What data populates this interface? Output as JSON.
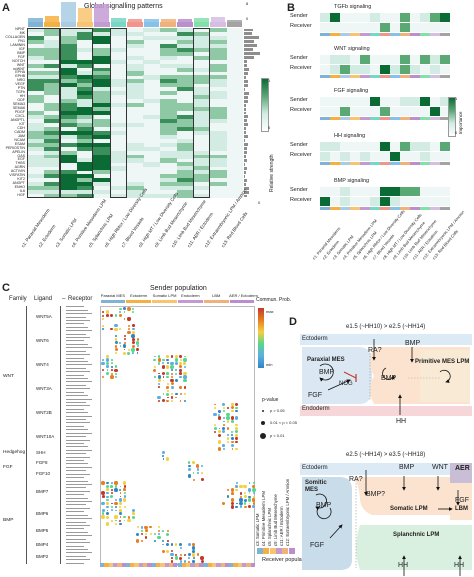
{
  "panelA": {
    "letter": "A",
    "title": "Global signalling patterns",
    "pathways": [
      "NPNT",
      "MK",
      "COLLAGEN",
      "FN1",
      "LAMININ",
      "IGF",
      "BMP",
      "FGF",
      "NOTCH",
      "WNT",
      "ncWNT",
      "EPHA",
      "EPHB",
      "NRG",
      "VEGF",
      "PTN",
      "TGFb",
      "HH",
      "GDF",
      "SEMA3",
      "SEMA6",
      "PDGF",
      "CXCL",
      "ANGPTL",
      "KIT",
      "CDH",
      "CADM",
      "JAM",
      "NCAM",
      "ESAM",
      "PERIOSTIN",
      "APELIN",
      "GAS",
      "EGF",
      "THBS",
      "AGRN",
      "ACTIVIN",
      "VISFATIN",
      "KIT2",
      "ANGPT",
      "ENHO",
      "IL6",
      "HGF"
    ],
    "columns": [
      "c1: Paraxial Mesoderm",
      "c2: Ectoderm",
      "c3: Somatic LPM",
      "c4: Primitive Mesoderm LPM",
      "c5: Splanchnic LPM",
      "c6: High Rbfox / Low Diversity Cells",
      "c7: Blood Vessels",
      "c8: High MT / Low Diversity Cells",
      "c9: Limb Bud Mesenchyme",
      "c10: Limb Bud Mesenchyme",
      "c11: AER / Ectoderm",
      "c12: Extraembryonic LPM / Amnion",
      "c13: Red Blood Cells"
    ],
    "legend_title": "Relative strength",
    "legend_max": "1",
    "legend_min": "0",
    "top_bar_max": "8",
    "top_bar_zero": "0",
    "right_bar_max": "0",
    "colors": {
      "dark": "#0b6b35",
      "mid": "#5aa874",
      "light": "#d2ece4",
      "bg": "#eef7f5"
    }
  },
  "panelB": {
    "letter": "B",
    "blocks": [
      {
        "title": "TGFb signaling"
      },
      {
        "title": "WNT signaling"
      },
      {
        "title": "FGF signaling"
      },
      {
        "title": "HH signaling"
      },
      {
        "title": "BMP signaling"
      }
    ],
    "sender": "Sender",
    "receiver": "Receiver",
    "legend_title": "Importance",
    "legend_max": "1",
    "legend_min": "0",
    "columns": [
      "c1: Paraxial Mesoderm",
      "c2: Ectoderm",
      "c3: Somatic LPM",
      "c4: Primitive Mesoderm LPM",
      "c5: Splanchnic LPM",
      "c6: High Rbfox / Low Diversity Cells",
      "c7: Blood Vessels",
      "c8: High MT / Low Diversity Cells",
      "c9: Limb Bud Mesenchyme",
      "c10: Limb Bud Mesenchyme",
      "c11: AER / Ectoderm",
      "c12: Extraembryonic LPM / Amnion",
      "c13: Red Blood Cells"
    ]
  },
  "panelC": {
    "letter": "C",
    "header_family": "Family",
    "header_ligand": "Ligand",
    "header_receptor": "Receptor",
    "sender_title": "Sender population",
    "sender_groups": [
      "Paraxial MES",
      "Ectoderm",
      "Somatic LPM",
      "Endoderm",
      "LBM",
      "AER / Ectoderm"
    ],
    "families": [
      "WNT",
      "Hedgehog",
      "FGF",
      "BMP"
    ],
    "ligands": [
      "WNT5A",
      "WNT6",
      "WNT4",
      "WNT3A",
      "WNT2B",
      "WNT10A",
      "SHH",
      "FGF8",
      "FGF10",
      "BMP7",
      "BMP6",
      "BMP5",
      "BMP4",
      "BMP2"
    ],
    "legend_title": "Commun. Prob.",
    "legend_max": "max",
    "legend_min": "min",
    "pvalue_title": "p-value",
    "pvalue_items": [
      "p > 0.05",
      "0.01 < p < 0.05",
      "p < 0.01"
    ],
    "receiver_legend": [
      "c3: Somatic LPM",
      "c4: Primitive Mesoderm LPM",
      "c5: Splanchnic LPM",
      "c9: Limb Bud Mesenchyme",
      "c11: AER / Ectoderm",
      "c12: Extraembryonic LPM / Amnion"
    ],
    "receiver_title": "Receiver population"
  },
  "panelD": {
    "letter": "D",
    "top": {
      "title": "e1.5 (~HH10) > e2.5 (~HH14)",
      "ectoderm": "Ectoderm",
      "endoderm": "Endoderm",
      "paraxial": "Paraxial MES",
      "primitive": "Primitive MES LPM",
      "bmp_top": "BMP",
      "ra": "RA?",
      "bmp_left": "BMP",
      "bmp_mid": "BMP",
      "nog": "NOG",
      "fgf": "FGF",
      "hh": "HH"
    },
    "bottom": {
      "title": "e2.5 (~HH14) > e3.5 (~HH18)",
      "ectoderm": "Ectoderm",
      "aer": "AER",
      "somitic": "Somitic MES",
      "ra": "RA?",
      "bmp_top": "BMP",
      "wnt": "WNT",
      "bmp_left": "BMP",
      "bmpq": "BMP?",
      "somatic": "Somatic LPM",
      "lbm": "LBM",
      "splanchnic": "Splanchnic LPM",
      "fgf_left": "FGF",
      "fgf_right": "FGF",
      "hh_left": "HH",
      "hh_right": "HH"
    }
  },
  "cluster_colors": [
    "#7fb3d5",
    "#f5b041",
    "#a9cce3",
    "#f8c471",
    "#c39bd3",
    "#76d7c4",
    "#f1948a",
    "#85c1e9",
    "#f0b27a",
    "#bb8fce",
    "#82e0aa",
    "#d7bde2",
    "#a3a3a3"
  ]
}
